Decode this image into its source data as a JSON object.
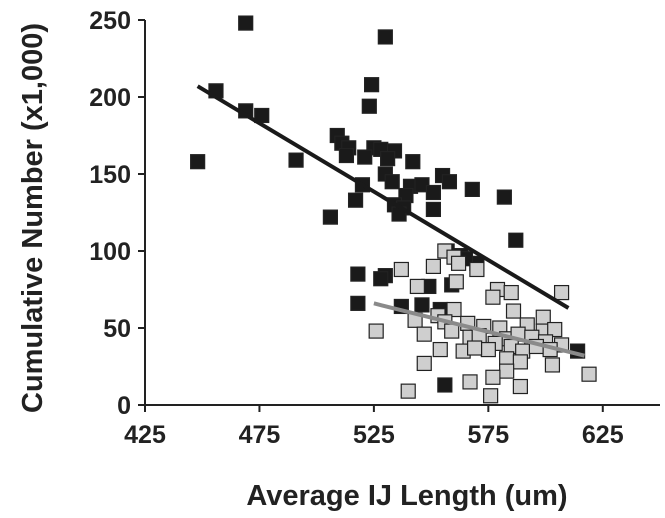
{
  "chart_data": {
    "type": "scatter",
    "title": "",
    "xlabel": "Average IJ Length (um)",
    "ylabel": "Cumulative Number  (x1,000)",
    "xlim": [
      425,
      650
    ],
    "ylim": [
      0,
      250
    ],
    "xticks": [
      425,
      475,
      525,
      575,
      625
    ],
    "yticks": [
      0,
      50,
      100,
      150,
      200,
      250
    ],
    "xtick_labels": [
      "425",
      "475",
      "525",
      "575",
      "625"
    ],
    "ytick_labels": [
      "0",
      "50",
      "100",
      "150",
      "200",
      "250"
    ],
    "grid": false,
    "legend": "none",
    "series": [
      {
        "marker": "square",
        "color": "#1a1a1a",
        "points": [
          [
            469,
            248
          ],
          [
            530,
            239
          ],
          [
            456,
            204
          ],
          [
            524,
            208
          ],
          [
            523,
            194
          ],
          [
            469,
            191
          ],
          [
            476,
            188
          ],
          [
            509,
            175
          ],
          [
            511,
            170
          ],
          [
            514,
            167
          ],
          [
            525,
            167
          ],
          [
            513,
            162
          ],
          [
            528,
            166
          ],
          [
            534,
            165
          ],
          [
            521,
            161
          ],
          [
            531,
            160
          ],
          [
            542,
            158
          ],
          [
            491,
            159
          ],
          [
            448,
            158
          ],
          [
            555,
            149
          ],
          [
            558,
            145
          ],
          [
            530,
            150
          ],
          [
            533,
            145
          ],
          [
            541,
            142
          ],
          [
            546,
            143
          ],
          [
            568,
            140
          ],
          [
            551,
            138
          ],
          [
            520,
            143
          ],
          [
            517,
            133
          ],
          [
            539,
            136
          ],
          [
            534,
            130
          ],
          [
            538,
            128
          ],
          [
            582,
            135
          ],
          [
            551,
            127
          ],
          [
            506,
            122
          ],
          [
            536,
            124
          ],
          [
            587,
            107
          ],
          [
            557,
            100
          ],
          [
            563,
            97
          ],
          [
            570,
            92
          ],
          [
            565,
            95
          ],
          [
            518,
            85
          ],
          [
            530,
            84
          ],
          [
            528,
            82
          ],
          [
            549,
            77
          ],
          [
            559,
            78
          ],
          [
            518,
            66
          ],
          [
            537,
            64
          ],
          [
            546,
            65
          ],
          [
            554,
            62
          ],
          [
            556,
            13
          ],
          [
            614,
            35
          ]
        ],
        "trendline": {
          "x": [
            448,
            610
          ],
          "y": [
            207,
            63
          ]
        }
      },
      {
        "marker": "square",
        "color": "#cfcfcf",
        "points": [
          [
            556,
            100
          ],
          [
            560,
            96
          ],
          [
            562,
            92
          ],
          [
            551,
            90
          ],
          [
            570,
            88
          ],
          [
            537,
            88
          ],
          [
            544,
            77
          ],
          [
            561,
            80
          ],
          [
            579,
            75
          ],
          [
            585,
            73
          ],
          [
            607,
            73
          ],
          [
            577,
            70
          ],
          [
            560,
            62
          ],
          [
            586,
            61
          ],
          [
            599,
            57
          ],
          [
            553,
            58
          ],
          [
            543,
            55
          ],
          [
            556,
            54
          ],
          [
            566,
            53
          ],
          [
            573,
            51
          ],
          [
            580,
            50
          ],
          [
            592,
            52
          ],
          [
            599,
            48
          ],
          [
            604,
            49
          ],
          [
            526,
            48
          ],
          [
            547,
            46
          ],
          [
            559,
            48
          ],
          [
            567,
            44
          ],
          [
            571,
            45
          ],
          [
            583,
            43
          ],
          [
            588,
            46
          ],
          [
            594,
            44
          ],
          [
            600,
            41
          ],
          [
            607,
            39
          ],
          [
            578,
            40
          ],
          [
            575,
            36
          ],
          [
            564,
            35
          ],
          [
            569,
            37
          ],
          [
            585,
            38
          ],
          [
            590,
            35
          ],
          [
            596,
            38
          ],
          [
            602,
            36
          ],
          [
            554,
            36
          ],
          [
            547,
            27
          ],
          [
            583,
            30
          ],
          [
            589,
            28
          ],
          [
            603,
            26
          ],
          [
            619,
            20
          ],
          [
            583,
            22
          ],
          [
            577,
            18
          ],
          [
            567,
            15
          ],
          [
            589,
            12
          ],
          [
            540,
            9
          ],
          [
            576,
            6
          ]
        ],
        "trendline": {
          "x": [
            525,
            617
          ],
          "y": [
            66,
            32
          ]
        }
      }
    ]
  }
}
